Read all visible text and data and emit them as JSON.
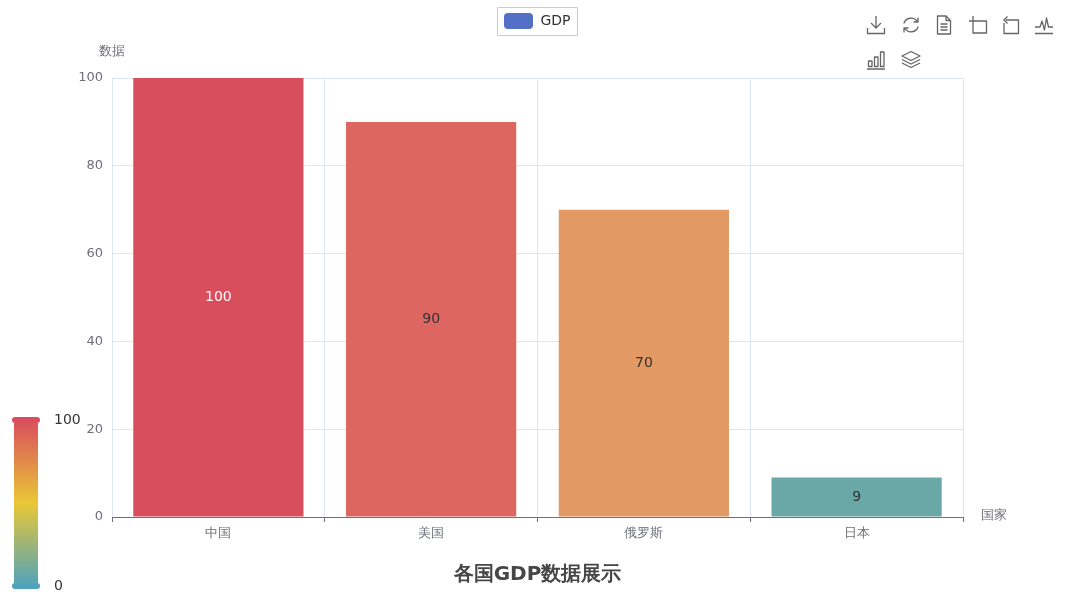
{
  "chart_data": {
    "type": "bar",
    "title": "各国GDP数据展示",
    "xlabel": "国家",
    "ylabel": "数据",
    "categories": [
      "中国",
      "美国",
      "俄罗斯",
      "日本"
    ],
    "series": [
      {
        "name": "GDP",
        "color": "#5470c6",
        "colors": [
          "#d94e5d",
          "#dd6760",
          "#e39963",
          "#6aa8a8"
        ],
        "values": [
          100,
          90,
          70,
          9
        ]
      }
    ],
    "ylim": [
      0,
      100
    ],
    "yticks": [
      0,
      20,
      40,
      60,
      80,
      100
    ],
    "grid": true,
    "legend": "top",
    "data_labels": true,
    "clim": [
      0,
      100
    ],
    "cticks": [
      0,
      100
    ]
  }
}
